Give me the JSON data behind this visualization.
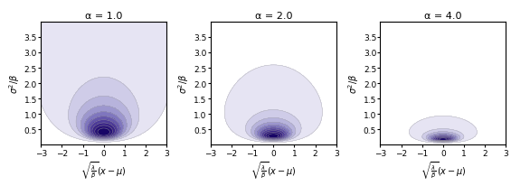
{
  "alphas": [
    1.0,
    2.0,
    4.0
  ],
  "titles": [
    "α = 1.0",
    "α = 2.0",
    "α = 4.0"
  ],
  "xlabel": "$\\sqrt{\\frac{\\lambda}{\\beta}}(x - \\mu)$",
  "ylabel": "$\\sigma^2/\\beta$",
  "xlim": [
    -3,
    3
  ],
  "ylim": [
    0,
    4
  ],
  "n_levels": 10,
  "figsize": [
    5.65,
    2.07
  ],
  "dpi": 100,
  "background_color": "white"
}
